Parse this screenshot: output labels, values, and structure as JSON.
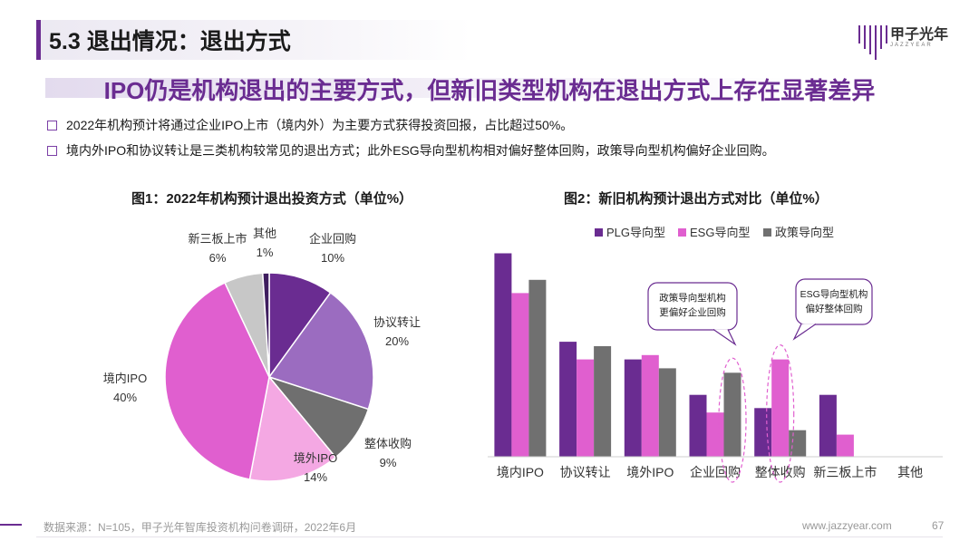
{
  "header": {
    "title": "5.3 退出情况：退出方式",
    "logo_text": "甲子光年",
    "logo_sub": "JAZZYEAR"
  },
  "subtitle": "IPO仍是机构退出的主要方式，但新旧类型机构在退出方式上存在显著差异",
  "bullets": [
    "2022年机构预计将通过企业IPO上市（境内外）为主要方式获得投资回报，占比超过50%。",
    "境内外IPO和协议转让是三类机构较常见的退出方式；此外ESG导向型机构相对偏好整体回购，政策导向型机构偏好企业回购。"
  ],
  "colors": {
    "brand": "#6a2c91",
    "plg": "#6a2c91",
    "esg": "#e05fcf",
    "policy": "#707070"
  },
  "chart_data": [
    {
      "type": "pie",
      "title": "图1：2022年机构预计退出投资方式（单位%）",
      "slices": [
        {
          "label": "企业回购",
          "value": 10,
          "display": "10%",
          "color": "#6a2c91"
        },
        {
          "label": "协议转让",
          "value": 20,
          "display": "20%",
          "color": "#9b6cc0"
        },
        {
          "label": "整体收购",
          "value": 9,
          "display": "9%",
          "color": "#6f6f6f"
        },
        {
          "label": "境外IPO",
          "value": 14,
          "display": "14%",
          "color": "#f4a8e3"
        },
        {
          "label": "境内IPO",
          "value": 40,
          "display": "40%",
          "color": "#e05fcf"
        },
        {
          "label": "新三板上市",
          "value": 6,
          "display": "6%",
          "color": "#c7c7c7"
        },
        {
          "label": "其他",
          "value": 1,
          "display": "1%",
          "color": "#3e1d5e"
        }
      ]
    },
    {
      "type": "bar",
      "title": "图2：新旧机构预计退出方式对比（单位%）",
      "categories": [
        "境内IPO",
        "协议转让",
        "境外IPO",
        "企业回购",
        "整体收购",
        "新三板上市",
        "其他"
      ],
      "series": [
        {
          "name": "PLG导向型",
          "color": "#6a2c91",
          "values": [
            46,
            26,
            22,
            14,
            11,
            14,
            0
          ]
        },
        {
          "name": "ESG导向型",
          "color": "#e05fcf",
          "values": [
            37,
            22,
            23,
            10,
            22,
            5,
            0
          ]
        },
        {
          "name": "政策导向型",
          "color": "#707070",
          "values": [
            40,
            25,
            20,
            19,
            6,
            0,
            0
          ]
        }
      ],
      "ylim": [
        0,
        50
      ],
      "grid": false,
      "legend_position": "top",
      "annotations": [
        {
          "lines": [
            "政策导向型机构",
            "更偏好企业回购"
          ],
          "category": "企业回购",
          "series": "政策导向型"
        },
        {
          "lines": [
            "ESG导向型机构",
            "偏好整体回购"
          ],
          "category": "整体收购",
          "series": "ESG导向型"
        }
      ]
    }
  ],
  "footer": {
    "source": "数据来源：N=105，甲子光年智库投资机构问卷调研，2022年6月",
    "url": "www.jazzyear.com",
    "page": "67"
  }
}
